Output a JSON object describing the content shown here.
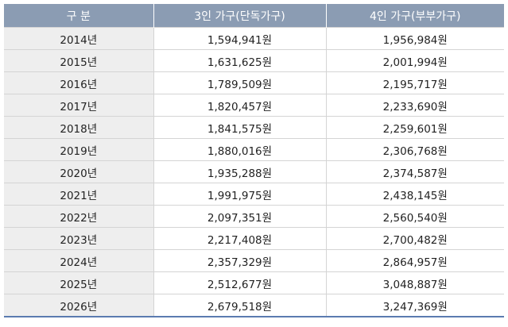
{
  "table": {
    "header": [
      "구 분",
      "3인 가구(단독가구)",
      "4인 가구(부부가구)"
    ],
    "rows": [
      [
        "2014년",
        "1,594,941원",
        "1,956,984원"
      ],
      [
        "2015년",
        "1,631,625원",
        "2,001,994원"
      ],
      [
        "2016년",
        "1,789,509원",
        "2,195,717원"
      ],
      [
        "2017년",
        "1,820,457원",
        "2,233,690원"
      ],
      [
        "2018년",
        "1,841,575원",
        "2,259,601원"
      ],
      [
        "2019년",
        "1,880,016원",
        "2,306,768원"
      ],
      [
        "2020년",
        "1,935,288원",
        "2,374,587원"
      ],
      [
        "2021년",
        "1,991,975원",
        "2,438,145원"
      ],
      [
        "2022년",
        "2,097,351원",
        "2,560,540원"
      ],
      [
        "2023년",
        "2,217,408원",
        "2,700,482원"
      ],
      [
        "2024년",
        "2,357,329원",
        "2,864,957원"
      ],
      [
        "2025년",
        "2,512,677원",
        "3,048,887원"
      ],
      [
        "2026년",
        "2,679,518원",
        "3,247,369원"
      ]
    ]
  }
}
